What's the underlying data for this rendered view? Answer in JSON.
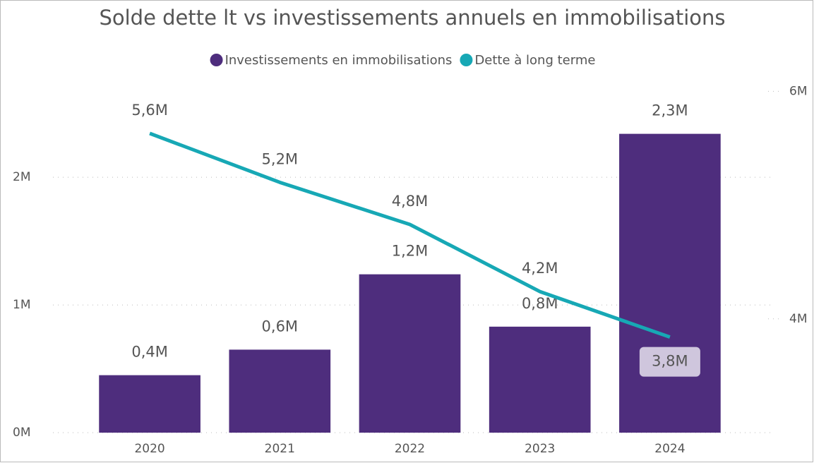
{
  "chart_data": {
    "type": "bar-line",
    "title": "Solde dette lt vs investissements annuels en immobilisations",
    "categories": [
      "2020",
      "2021",
      "2022",
      "2023",
      "2024"
    ],
    "series": [
      {
        "name": "Investissements en immobilisations",
        "color": "#4e2d7d",
        "type": "bar",
        "axis": "y",
        "values": [
          0.45,
          0.65,
          1.24,
          0.83,
          2.34
        ],
        "value_labels": [
          "0,4M",
          "0,6M",
          "1,2M",
          "0,8M",
          "2,3M"
        ]
      },
      {
        "name": "Dette à long terme",
        "color": "#17a8b5",
        "type": "line",
        "axis": "y2",
        "values": [
          5.63,
          5.2,
          4.83,
          4.24,
          3.84
        ],
        "value_labels": [
          "5,6M",
          "5,2M",
          "4,8M",
          "4,2M",
          "3,8M"
        ]
      }
    ],
    "ylim": [
      0,
      2.78
    ],
    "yticks": [
      {
        "value": 0,
        "label": "0M"
      },
      {
        "value": 1,
        "label": "1M"
      },
      {
        "value": 2,
        "label": "2M"
      }
    ],
    "y2lim": [
      3,
      6.12
    ],
    "y2ticks": [
      {
        "value": 4,
        "label": "4M"
      },
      {
        "value": 6,
        "label": "6M"
      }
    ],
    "grid": true,
    "legend": "top"
  }
}
